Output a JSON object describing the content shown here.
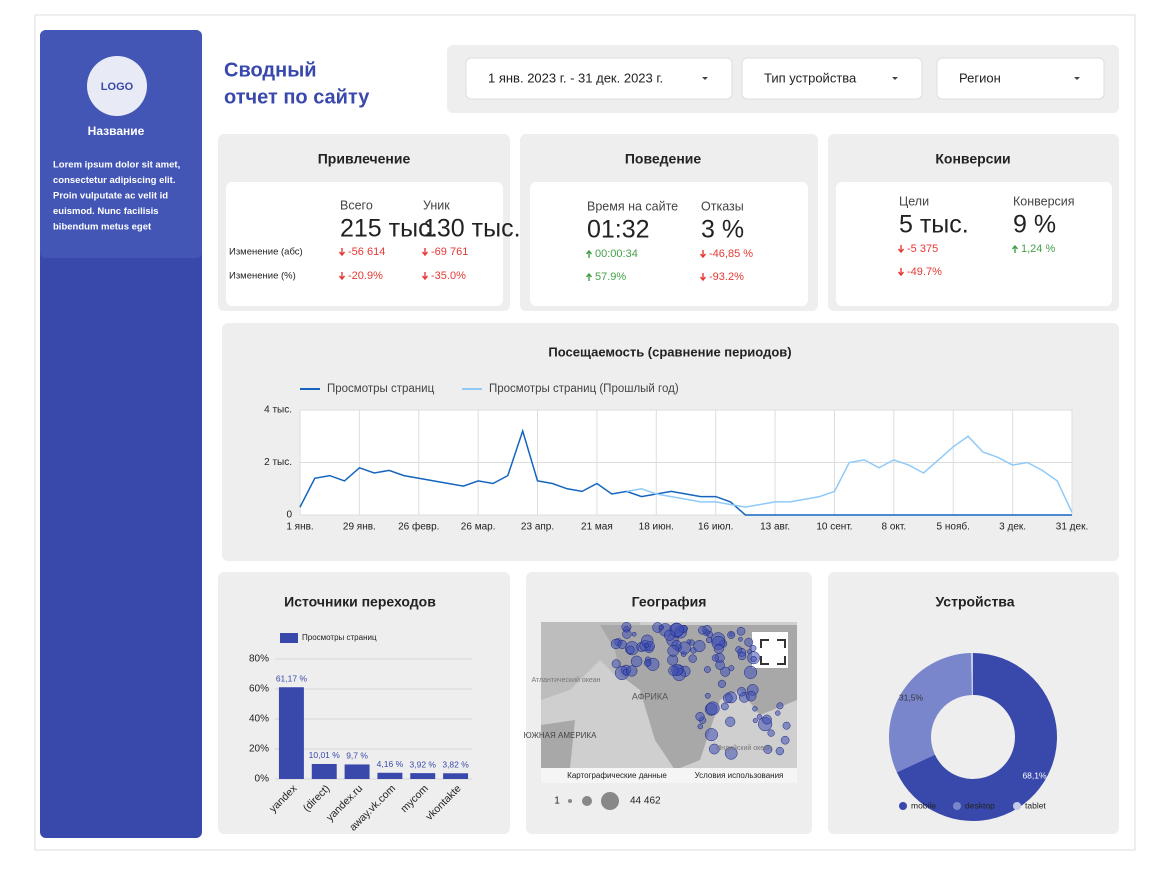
{
  "sidebar": {
    "logo": "LOGO",
    "name": "Название",
    "text": [
      "Lorem ipsum dolor sit amet,",
      "consectetur adipiscing elit.",
      "Proin vulputate ac velit id",
      "euismod. Nunc facilisis",
      "bibendum metus eget"
    ]
  },
  "header": {
    "title": [
      "Сводный",
      "отчет по сайту"
    ]
  },
  "filters": [
    "1 янв. 2023 г. - 31 дек. 2023 г.",
    "Тип устройства",
    "Регион"
  ],
  "kpis": [
    {
      "title": "Привлечение",
      "row_labels": [
        "Изменение (абс)",
        "Изменение (%)"
      ],
      "metrics": [
        {
          "label": "Всего",
          "value": "215 тыс.",
          "changes": [
            {
              "text": "-56 614",
              "dir": "down"
            },
            {
              "text": "-20.9%",
              "dir": "down"
            }
          ]
        },
        {
          "label": "Уник",
          "value": "130 тыс.",
          "changes": [
            {
              "text": "-69 761",
              "dir": "down"
            },
            {
              "text": "-35.0%",
              "dir": "down"
            }
          ]
        }
      ]
    },
    {
      "title": "Поведение",
      "metrics": [
        {
          "label": "Время на сайте",
          "value": "01:32",
          "changes": [
            {
              "text": "00:00:34",
              "dir": "up"
            },
            {
              "text": "57.9%",
              "dir": "up"
            }
          ]
        },
        {
          "label": "Отказы",
          "value": "3 %",
          "changes": [
            {
              "text": "-46,85 %",
              "dir": "down"
            },
            {
              "text": "-93.2%",
              "dir": "down"
            }
          ]
        }
      ]
    },
    {
      "title": "Конверсии",
      "metrics": [
        {
          "label": "Цели",
          "value": "5 тыс.",
          "changes": [
            {
              "text": "-5 375",
              "dir": "down"
            },
            {
              "text": "-49.7%",
              "dir": "down"
            }
          ]
        },
        {
          "label": "Конверсия",
          "value": "9 %",
          "changes": [
            {
              "text": "1,24 %",
              "dir": "up"
            }
          ]
        }
      ]
    }
  ],
  "map": {
    "title": "География",
    "labels": [
      "АФРИКА",
      "Атлантический океан",
      "Индийский океан",
      "ЮЖНАЯ АМЕРИКА"
    ],
    "footer": [
      "Картографические данные",
      "Условия использования"
    ],
    "legend": [
      "1",
      "44 462"
    ]
  },
  "chart_data": [
    {
      "type": "line",
      "title": "Посещаемость (сравнение периодов)",
      "categories": [
        "1 янв.",
        null,
        null,
        null,
        "29 янв.",
        null,
        null,
        null,
        "26 февр.",
        null,
        null,
        null,
        "26 мар.",
        null,
        null,
        null,
        "23 апр.",
        null,
        null,
        null,
        "21 мая",
        null,
        null,
        null,
        "18 июн.",
        null,
        null,
        null,
        "16 июл.",
        null,
        null,
        null,
        "13 авг.",
        null,
        null,
        null,
        "10 сент.",
        null,
        null,
        null,
        "8 окт.",
        null,
        null,
        null,
        "5 нояб.",
        null,
        null,
        null,
        "3 дек.",
        null,
        null,
        null,
        "31 дек."
      ],
      "series": [
        {
          "name": "Просмотры страниц",
          "color": "#1565c0",
          "values": [
            300,
            1400,
            1500,
            1300,
            1800,
            1600,
            1700,
            1500,
            1400,
            1300,
            1200,
            1100,
            1300,
            1200,
            1500,
            3200,
            1300,
            1200,
            1000,
            900,
            1200,
            800,
            900,
            700,
            800,
            900,
            800,
            700,
            700,
            500,
            0,
            0,
            0,
            0,
            0,
            0,
            0,
            0,
            0,
            0,
            0,
            0,
            0,
            0,
            0,
            0,
            0,
            0,
            0,
            0,
            0,
            0,
            0
          ]
        },
        {
          "name": "Просмотры страниц (Прошлый год)",
          "color": "#90caf9",
          "values": [
            null,
            null,
            null,
            null,
            null,
            null,
            null,
            null,
            null,
            null,
            null,
            null,
            null,
            null,
            null,
            null,
            null,
            null,
            null,
            null,
            null,
            null,
            900,
            1000,
            800,
            700,
            600,
            500,
            500,
            400,
            300,
            400,
            500,
            500,
            600,
            700,
            900,
            2000,
            2100,
            1800,
            2100,
            1900,
            1600,
            2100,
            2600,
            3000,
            2400,
            2200,
            1900,
            2000,
            1700,
            1300,
            100
          ]
        }
      ],
      "ylim": [
        0,
        4000
      ],
      "yticks": [
        0,
        {
          "value": 2000,
          "label": "2 тыс."
        },
        {
          "value": 4000,
          "label": "4 тыс."
        }
      ],
      "grid": true
    },
    {
      "type": "bar",
      "title": "Источники переходов",
      "categories": [
        "yandex",
        "(direct)",
        "yandex.ru",
        "away.vk.com",
        "mycom",
        "vkontakte"
      ],
      "series": [
        {
          "name": "Просмотры страниц",
          "color": "#3949ab",
          "values": [
            61.17,
            10.01,
            9.7,
            4.16,
            3.92,
            3.82
          ],
          "value_labels": [
            "61,17 %",
            "10,01 %",
            "9,7 %",
            "4,16 %",
            "3,92 %",
            "3,82 %"
          ]
        }
      ],
      "ylim": [
        0,
        80
      ],
      "yticks": [
        {
          "value": 0,
          "label": "0%"
        },
        {
          "value": 20,
          "label": "20%"
        },
        {
          "value": 40,
          "label": "40%"
        },
        {
          "value": 60,
          "label": "60%"
        },
        {
          "value": 80,
          "label": "80%"
        }
      ],
      "grid": true
    },
    {
      "type": "pie",
      "title": "Устройства",
      "donut": true,
      "categories": [
        "mobile",
        "desktop",
        "tablet"
      ],
      "values": [
        68.1,
        31.5,
        0.4
      ],
      "value_labels": [
        "68,1%",
        "31,5%",
        null
      ],
      "colors": [
        "#3949ab",
        "#7986cb",
        "#c5cae9"
      ]
    }
  ]
}
